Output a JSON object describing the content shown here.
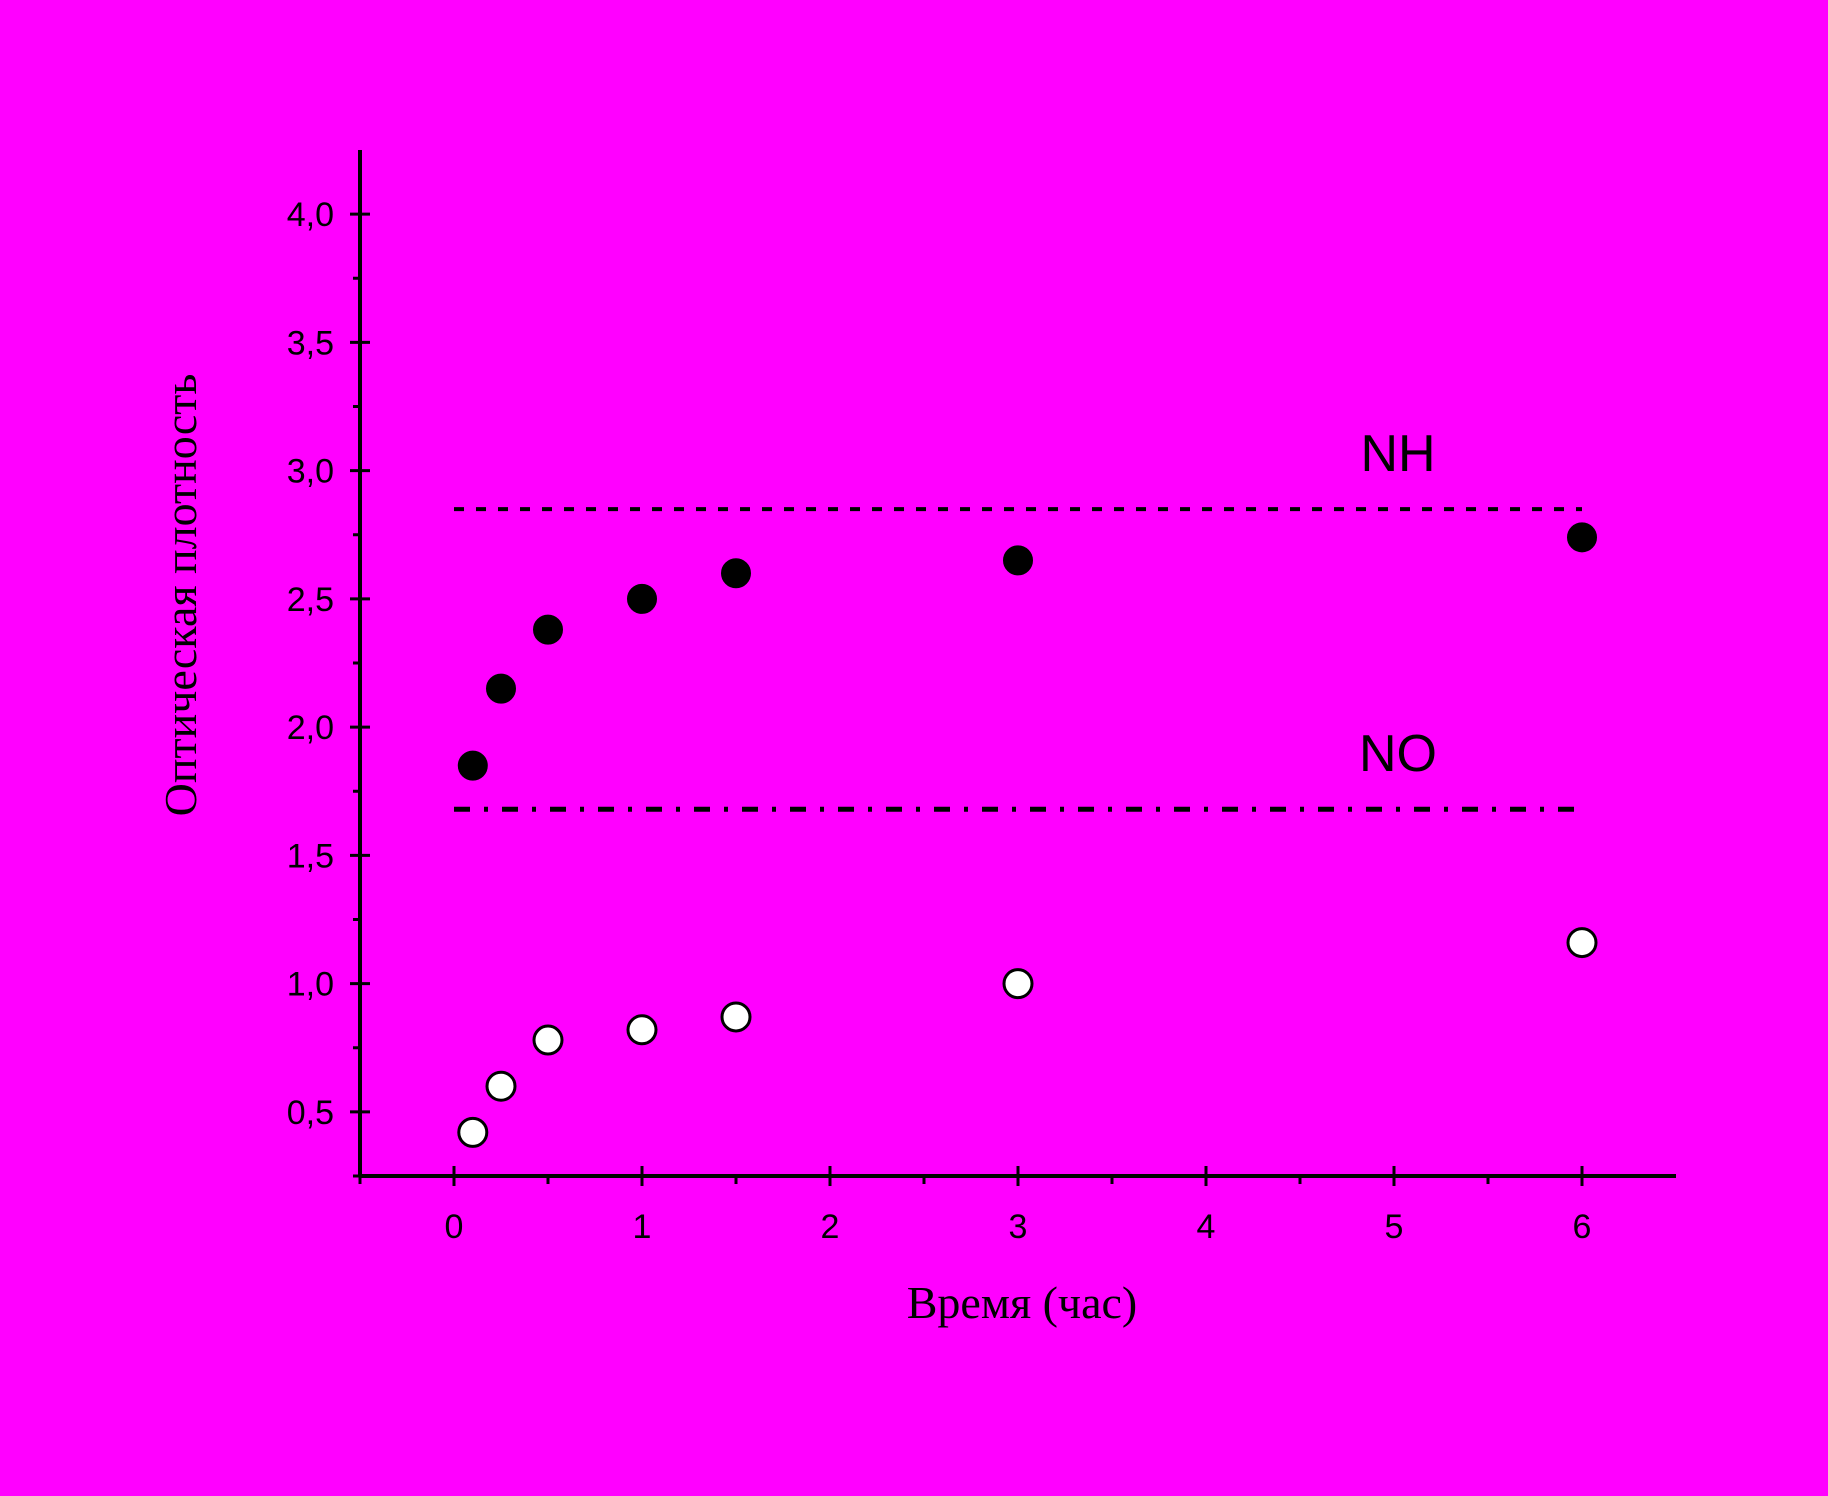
{
  "chart_data": {
    "type": "scatter",
    "title": "",
    "xlabel": "Время (час)",
    "ylabel": "Оптическая плотность",
    "xlim": [
      -0.5,
      6.5
    ],
    "ylim": [
      0.25,
      4.25
    ],
    "grid": false,
    "legend": "none",
    "x_ticks": [
      0,
      1,
      2,
      3,
      4,
      5,
      6
    ],
    "x_tick_labels": [
      "0",
      "1",
      "2",
      "3",
      "4",
      "5",
      "6"
    ],
    "y_ticks": [
      0.5,
      1.0,
      1.5,
      2.0,
      2.5,
      3.0,
      3.5,
      4.0
    ],
    "y_tick_labels": [
      "0,5",
      "1,0",
      "1,5",
      "2,0",
      "2,5",
      "3,0",
      "3,5",
      "4,0"
    ],
    "series": [
      {
        "marker": "filled-circle",
        "color": "#000000",
        "points": [
          {
            "x": 0.1,
            "y": 1.85
          },
          {
            "x": 0.25,
            "y": 2.15
          },
          {
            "x": 0.5,
            "y": 2.38
          },
          {
            "x": 1.0,
            "y": 2.5
          },
          {
            "x": 1.5,
            "y": 2.6
          },
          {
            "x": 3.0,
            "y": 2.65
          },
          {
            "x": 6.0,
            "y": 2.74
          }
        ]
      },
      {
        "marker": "open-circle",
        "color": "#FFFFFF",
        "points": [
          {
            "x": 0.1,
            "y": 0.42
          },
          {
            "x": 0.25,
            "y": 0.6
          },
          {
            "x": 0.5,
            "y": 0.78
          },
          {
            "x": 1.0,
            "y": 0.82
          },
          {
            "x": 1.5,
            "y": 0.87
          },
          {
            "x": 3.0,
            "y": 1.0
          },
          {
            "x": 6.0,
            "y": 1.16
          }
        ]
      }
    ],
    "reference_lines": [
      {
        "label": "NH",
        "y": 2.85,
        "x_range": [
          0,
          6
        ],
        "style": "dashed"
      },
      {
        "label": "NO",
        "y": 1.68,
        "x_range": [
          0,
          6
        ],
        "style": "dash-dot"
      }
    ],
    "colors": {
      "background": "#FF00FF",
      "axes": "#000000",
      "text": "#000000"
    }
  }
}
